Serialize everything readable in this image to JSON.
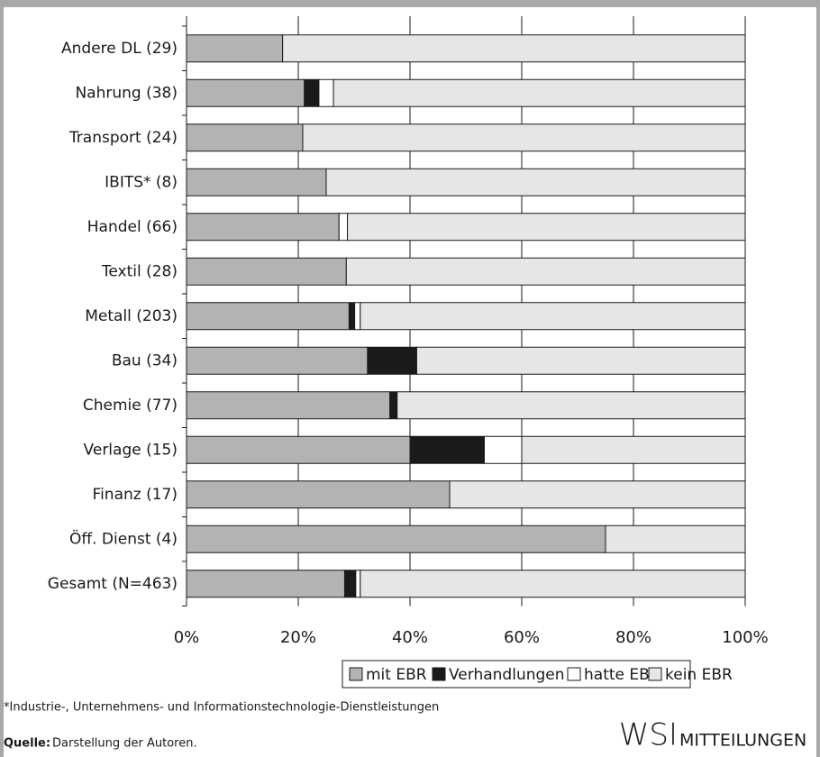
{
  "chart_data": {
    "type": "stacked_bar_horizontal",
    "categories": [
      "Andere DL (29)",
      "Nahrung (38)",
      "Transport (24)",
      "IBITS* (8)",
      "Handel (66)",
      "Textil (28)",
      "Metall (203)",
      "Bau (34)",
      "Chemie (77)",
      "Verlage (15)",
      "Finanz (17)",
      "Öff. Dienst (4)",
      "Gesamt (N=463)"
    ],
    "series": [
      {
        "name": "mit EBR",
        "color": "#b3b3b3",
        "values": [
          17.2,
          21.1,
          20.8,
          25,
          27.3,
          28.6,
          29.1,
          32.4,
          36.4,
          40,
          47.1,
          75,
          28.3
        ]
      },
      {
        "name": "Verhandlungen",
        "color": "#1a1a1a",
        "values": [
          0,
          2.6,
          0,
          0,
          0,
          0,
          1.0,
          8.8,
          1.3,
          13.3,
          0,
          0,
          2.0
        ]
      },
      {
        "name": "hatte EBR",
        "color": "#ffffff",
        "values": [
          0,
          2.6,
          0,
          0,
          1.5,
          0,
          1.0,
          0,
          0,
          6.7,
          0,
          0,
          0.8
        ]
      },
      {
        "name": "kein EBR",
        "color": "#e6e6e6",
        "values": [
          82.8,
          73.7,
          79.2,
          75,
          71.2,
          71.4,
          68.9,
          58.8,
          62.3,
          40,
          52.9,
          25,
          68.9
        ]
      }
    ],
    "xlim": [
      0,
      100
    ],
    "xticks": [
      {
        "value": 0,
        "label": "0%"
      },
      {
        "value": 20,
        "label": "20%"
      },
      {
        "value": 40,
        "label": "40%"
      },
      {
        "value": 60,
        "label": "60%"
      },
      {
        "value": 80,
        "label": "80%"
      },
      {
        "value": 100,
        "label": "100%"
      }
    ],
    "grid": true,
    "footnote": "*Industrie-, Unternehmens- und Informationstechnologie-Dienstleistungen",
    "source_label": "Quelle:",
    "source_text": "Darstellung der Autoren.",
    "logo_main": "WSI",
    "logo_sub": "MITTEILUNGEN"
  }
}
